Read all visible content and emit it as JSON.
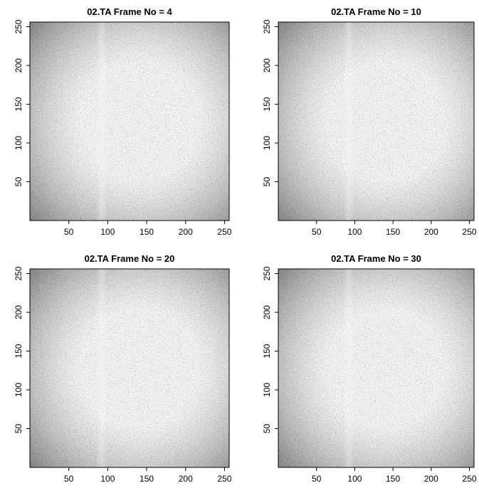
{
  "chart_data": [
    {
      "type": "image",
      "title": "02.TA Frame No = 4",
      "xlim": [
        0,
        256
      ],
      "ylim": [
        0,
        256
      ],
      "xticks": [
        50,
        100,
        150,
        200,
        250
      ],
      "yticks": [
        50,
        100,
        150,
        200,
        250
      ]
    },
    {
      "type": "image",
      "title": "02.TA Frame No = 10",
      "xlim": [
        0,
        256
      ],
      "ylim": [
        0,
        256
      ],
      "xticks": [
        50,
        100,
        150,
        200,
        250
      ],
      "yticks": [
        50,
        100,
        150,
        200,
        250
      ]
    },
    {
      "type": "image",
      "title": "02.TA Frame No = 20",
      "xlim": [
        0,
        256
      ],
      "ylim": [
        0,
        256
      ],
      "xticks": [
        50,
        100,
        150,
        200,
        250
      ],
      "yticks": [
        50,
        100,
        150,
        200,
        250
      ]
    },
    {
      "type": "image",
      "title": "02.TA Frame No = 30",
      "xlim": [
        0,
        256
      ],
      "ylim": [
        0,
        256
      ],
      "xticks": [
        50,
        100,
        150,
        200,
        250
      ],
      "yticks": [
        50,
        100,
        150,
        200,
        250
      ]
    }
  ]
}
